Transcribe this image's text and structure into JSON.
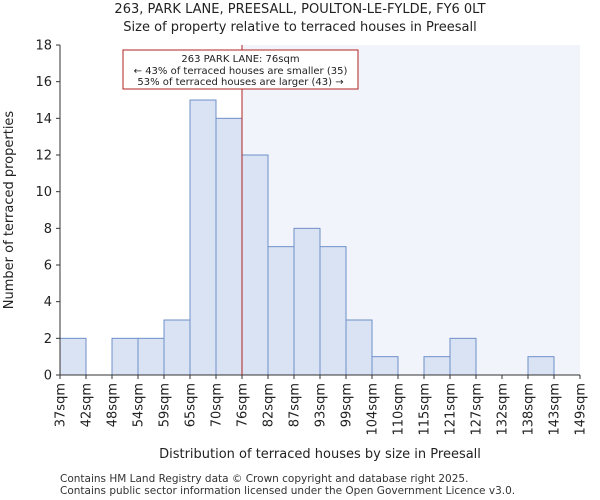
{
  "chart_data": {
    "type": "bar",
    "title": "263, PARK LANE, PREESALL, POULTON-LE-FYLDE, FY6 0LT",
    "subtitle": "Size of property relative to terraced houses in Preesall",
    "xlabel": "Distribution of terraced houses by size in Preesall",
    "ylabel": "Number of terraced properties",
    "ylim": [
      0,
      18
    ],
    "yticks": [
      0,
      2,
      4,
      6,
      8,
      10,
      12,
      14,
      16,
      18
    ],
    "bin_edges": [
      "37sqm",
      "42sqm",
      "48sqm",
      "54sqm",
      "59sqm",
      "65sqm",
      "70sqm",
      "76sqm",
      "82sqm",
      "87sqm",
      "93sqm",
      "99sqm",
      "104sqm",
      "110sqm",
      "115sqm",
      "121sqm",
      "127sqm",
      "132sqm",
      "138sqm",
      "143sqm",
      "149sqm"
    ],
    "values": [
      2,
      0,
      2,
      2,
      3,
      15,
      14,
      12,
      7,
      8,
      7,
      3,
      1,
      0,
      1,
      2,
      0,
      0,
      1,
      0
    ],
    "marker": {
      "bin_index": 7,
      "label": "263 PARK LANE: 76sqm"
    },
    "annotation": {
      "line1": "263 PARK LANE: 76sqm",
      "line2": "← 43% of terraced houses are smaller (35)",
      "line3": "53% of terraced houses are larger (43) →"
    },
    "colors": {
      "bar_fill": "#dae3f3",
      "bar_stroke": "#6f8fc9",
      "marker": "#b22222",
      "highlight_bg": "#f2f4fc"
    }
  },
  "footer": {
    "line1": "Contains HM Land Registry data © Crown copyright and database right 2025.",
    "line2": "Contains public sector information licensed under the Open Government Licence v3.0."
  }
}
